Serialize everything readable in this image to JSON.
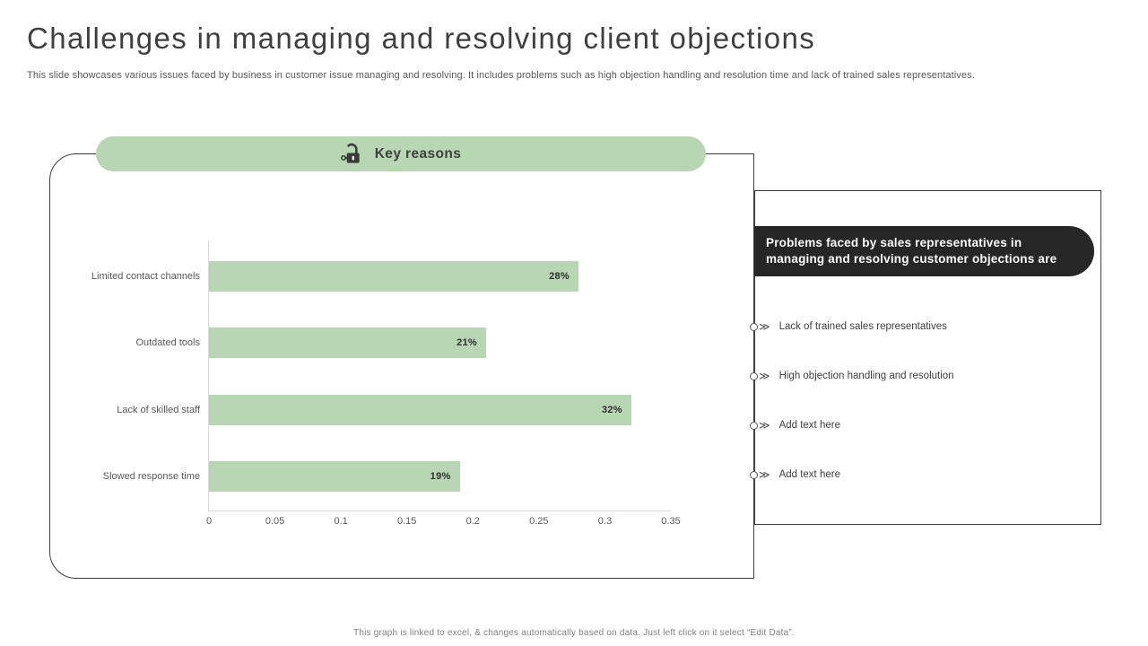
{
  "slide": {
    "title": "Challenges in managing and resolving client objections",
    "subtitle": "This slide showcases various issues faced by business in customer issue managing and resolving. It includes problems such as high objection handling and resolution time and lack of trained sales representatives.",
    "footer": "This graph is linked to excel, & changes automatically based on data. Just left click on it select “Edit Data”."
  },
  "key_reasons": {
    "label": "Key reasons",
    "icon": "padlock-unlocked-with-key-icon"
  },
  "chart_data": {
    "type": "bar",
    "orientation": "horizontal",
    "title": "",
    "xlabel": "",
    "ylabel": "",
    "categories": [
      "Limited contact channels",
      "Outdated tools",
      "Lack of skilled staff",
      "Slowed response time"
    ],
    "values": [
      0.28,
      0.21,
      0.32,
      0.19
    ],
    "value_labels": [
      "28%",
      "21%",
      "32%",
      "19%"
    ],
    "xlim": [
      0,
      0.35
    ],
    "x_ticks": [
      "0",
      "0.05",
      "0.1",
      "0.15",
      "0.2",
      "0.25",
      "0.3",
      "0.35"
    ],
    "grid": false,
    "legend": false,
    "bar_color": "#b8d6b4"
  },
  "side_panel": {
    "badge": "Problems faced by sales representatives in managing and resolving customer objections are",
    "items": [
      {
        "label": "Lack of trained sales representatives"
      },
      {
        "label": "High objection handling and resolution"
      },
      {
        "label": "Add text here"
      },
      {
        "label": "Add text here"
      }
    ]
  },
  "icons": {
    "double_chevron": "≫"
  },
  "colors": {
    "accent_green": "#b8d6b4",
    "badge_dark": "#262626",
    "border_dark": "#3f3f3f",
    "axis_gray": "#d9d9d9",
    "text_dark": "#3f3f3f",
    "text_gray": "#595959",
    "footer_gray": "#808080"
  }
}
